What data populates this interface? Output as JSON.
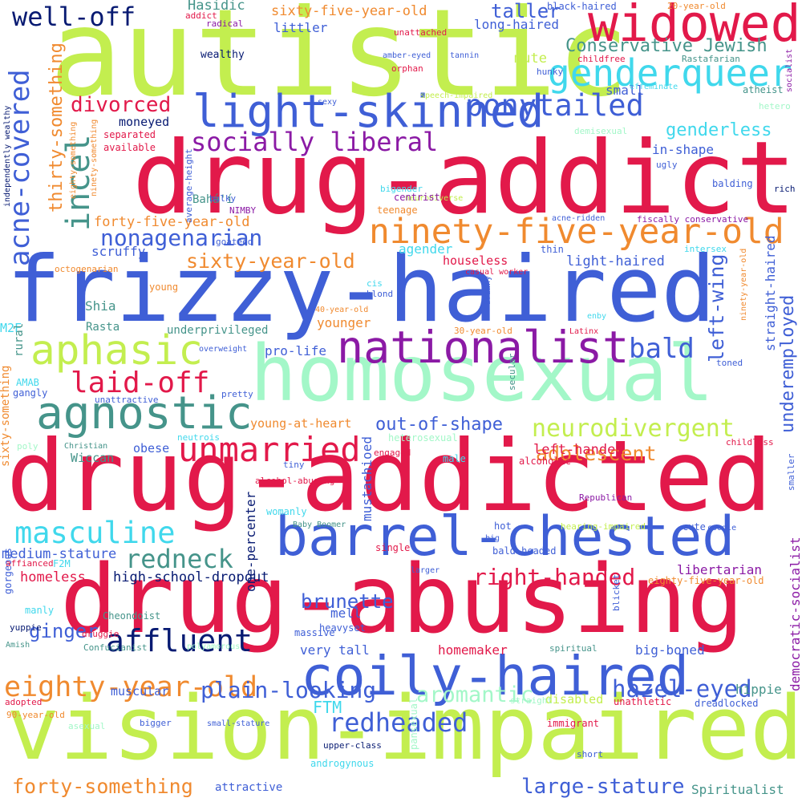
{
  "palette": {
    "lime": "#c3ee4f",
    "crimson": "#e2194a",
    "royal": "#3f5fd6",
    "mint": "#a3f7c8",
    "teal": "#45948a",
    "purple": "#8b1aa5",
    "cyan": "#40d8ec",
    "orange": "#f08a2f",
    "navy": "#071a72"
  },
  "words": [
    {
      "text": "autistic",
      "color": "lime"
    },
    {
      "text": "drug-addict",
      "color": "crimson"
    },
    {
      "text": "frizzy-haired",
      "color": "royal"
    },
    {
      "text": "homosexual",
      "color": "mint"
    },
    {
      "text": "drug-addicted",
      "color": "crimson"
    },
    {
      "text": "drug-abusing",
      "color": "crimson"
    },
    {
      "text": "vision-impaired",
      "color": "lime"
    },
    {
      "text": "barrel-chested",
      "color": "royal"
    },
    {
      "text": "coily-haired",
      "color": "royal"
    },
    {
      "text": "widowed",
      "color": "crimson"
    },
    {
      "text": "light-skinned",
      "color": "royal"
    },
    {
      "text": "ninety-five-year-old",
      "color": "orange"
    },
    {
      "text": "nationalist",
      "color": "purple"
    },
    {
      "text": "agnostic",
      "color": "teal"
    },
    {
      "text": "aphasic",
      "color": "lime"
    },
    {
      "text": "genderqueer",
      "color": "cyan"
    },
    {
      "text": "ponytailed",
      "color": "royal"
    },
    {
      "text": "unmarried",
      "color": "crimson"
    },
    {
      "text": "masculine",
      "color": "cyan"
    },
    {
      "text": "affluent",
      "color": "navy"
    },
    {
      "text": "eighty-year-old",
      "color": "orange"
    },
    {
      "text": "socially liberal",
      "color": "purple"
    },
    {
      "text": "incel",
      "color": "teal"
    },
    {
      "text": "acne-covered",
      "color": "royal"
    },
    {
      "text": "well-off",
      "color": "navy"
    },
    {
      "text": "nonagenarian",
      "color": "royal"
    },
    {
      "text": "neurodivergent",
      "color": "lime"
    },
    {
      "text": "laid-off",
      "color": "crimson"
    },
    {
      "text": "redneck",
      "color": "teal"
    },
    {
      "text": "bald",
      "color": "royal"
    },
    {
      "text": "plain-looking",
      "color": "royal"
    },
    {
      "text": "hazel-eyed",
      "color": "royal"
    },
    {
      "text": "redheaded",
      "color": "royal"
    },
    {
      "text": "right-handed",
      "color": "crimson"
    },
    {
      "text": "Conservative Jewish",
      "color": "teal"
    },
    {
      "text": "divorced",
      "color": "crimson"
    },
    {
      "text": "sixty-year-old",
      "color": "orange"
    },
    {
      "text": "left-wing",
      "color": "royal"
    },
    {
      "text": "aromantic",
      "color": "mint"
    },
    {
      "text": "large-stature",
      "color": "royal"
    },
    {
      "text": "forty-something",
      "color": "orange"
    },
    {
      "text": "brunette",
      "color": "royal"
    },
    {
      "text": "adolescent",
      "color": "orange"
    },
    {
      "text": "thirty-something",
      "color": "orange"
    },
    {
      "text": "underemployed",
      "color": "royal"
    },
    {
      "text": "out-of-shape",
      "color": "royal"
    },
    {
      "text": "genderless",
      "color": "cyan"
    },
    {
      "text": "ginger",
      "color": "royal"
    },
    {
      "text": "taller",
      "color": "royal"
    },
    {
      "text": "sixty-five-year-old",
      "color": "orange"
    },
    {
      "text": "forty-five-year-old",
      "color": "orange"
    },
    {
      "text": "democratic-socialist",
      "color": "purple"
    },
    {
      "text": "straight-haired",
      "color": "royal"
    },
    {
      "text": "FTM",
      "color": "cyan"
    },
    {
      "text": "mustachioed",
      "color": "royal"
    },
    {
      "text": "homeless",
      "color": "crimson"
    },
    {
      "text": "high-school-dropout",
      "color": "navy"
    },
    {
      "text": "medium-stature",
      "color": "royal"
    },
    {
      "text": "one-percenter",
      "color": "navy"
    },
    {
      "text": "Spiritualist",
      "color": "teal"
    },
    {
      "text": "Hasidic",
      "color": "teal"
    },
    {
      "text": "mute",
      "color": "lime"
    },
    {
      "text": "moneyed",
      "color": "navy"
    },
    {
      "text": "houseless",
      "color": "crimson"
    },
    {
      "text": "light-haired",
      "color": "royal"
    },
    {
      "text": "in-shape",
      "color": "royal"
    },
    {
      "text": "littler",
      "color": "royal"
    },
    {
      "text": "long-haired",
      "color": "royal"
    },
    {
      "text": "small",
      "color": "royal"
    },
    {
      "text": "scruffy",
      "color": "royal"
    },
    {
      "text": "agender",
      "color": "cyan"
    },
    {
      "text": "younger",
      "color": "orange"
    },
    {
      "text": "pro-life",
      "color": "royal"
    },
    {
      "text": "young-at-heart",
      "color": "orange"
    },
    {
      "text": "Shia",
      "color": "teal"
    },
    {
      "text": "Rasta",
      "color": "teal"
    },
    {
      "text": "underprivileged",
      "color": "teal"
    },
    {
      "text": "Wiccan",
      "color": "teal"
    },
    {
      "text": "obese",
      "color": "royal"
    },
    {
      "text": "left-handed",
      "color": "crimson"
    },
    {
      "text": "mell",
      "color": "royal"
    },
    {
      "text": "libertarian",
      "color": "purple"
    },
    {
      "text": "very tall",
      "color": "royal"
    },
    {
      "text": "homemaker",
      "color": "crimson"
    },
    {
      "text": "big-boned",
      "color": "royal"
    },
    {
      "text": "muscular",
      "color": "royal"
    },
    {
      "text": "hippie",
      "color": "teal"
    },
    {
      "text": "disabled",
      "color": "lime"
    },
    {
      "text": "attractive",
      "color": "royal"
    },
    {
      "text": "wealthy",
      "color": "navy"
    },
    {
      "text": "Bahá'í",
      "color": "teal"
    },
    {
      "text": "bald-headed",
      "color": "royal"
    },
    {
      "text": "gorgeous",
      "color": "royal"
    },
    {
      "text": "manly",
      "color": "cyan"
    },
    {
      "text": "heavyset",
      "color": "royal"
    },
    {
      "text": "massive",
      "color": "royal"
    },
    {
      "text": "eighty-five-year-old",
      "color": "orange"
    },
    {
      "text": "Cheondoist",
      "color": "teal"
    },
    {
      "text": "single",
      "color": "crimson"
    },
    {
      "text": "hot",
      "color": "royal"
    },
    {
      "text": "cute",
      "color": "royal"
    },
    {
      "text": "Republican",
      "color": "purple"
    },
    {
      "text": "dreadlocked",
      "color": "royal"
    },
    {
      "text": "unathletic",
      "color": "crimson"
    },
    {
      "text": "immigrant",
      "color": "crimson"
    },
    {
      "text": "upper-class",
      "color": "navy"
    },
    {
      "text": "androgynous",
      "color": "cyan"
    },
    {
      "text": "pansexual",
      "color": "mint"
    },
    {
      "text": "short",
      "color": "royal"
    },
    {
      "text": "20-year-old",
      "color": "orange"
    },
    {
      "text": "black-haired",
      "color": "royal"
    },
    {
      "text": "unattached",
      "color": "crimson"
    },
    {
      "text": "childfree",
      "color": "crimson"
    },
    {
      "text": "Rastafarian",
      "color": "teal"
    },
    {
      "text": "socialist",
      "color": "purple"
    },
    {
      "text": "atheist",
      "color": "teal"
    },
    {
      "text": "hetero",
      "color": "mint"
    },
    {
      "text": "effeminate",
      "color": "cyan"
    },
    {
      "text": "hunky",
      "color": "royal"
    },
    {
      "text": "orphan",
      "color": "crimson"
    },
    {
      "text": "amber-eyed",
      "color": "royal"
    },
    {
      "text": "tannin",
      "color": "royal"
    },
    {
      "text": "addict",
      "color": "crimson"
    },
    {
      "text": "radical",
      "color": "purple"
    },
    {
      "text": "speech-impaired",
      "color": "lime"
    },
    {
      "text": "sexy",
      "color": "royal"
    },
    {
      "text": "demisexual",
      "color": "mint"
    },
    {
      "text": "separated",
      "color": "crimson"
    },
    {
      "text": "available",
      "color": "crimson"
    },
    {
      "text": "average-height",
      "color": "royal"
    },
    {
      "text": "ninety-something",
      "color": "orange"
    },
    {
      "text": "eighty-something",
      "color": "orange"
    },
    {
      "text": "independently wealthy",
      "color": "navy"
    },
    {
      "text": "bigender",
      "color": "cyan"
    },
    {
      "text": "neurodiverse",
      "color": "lime"
    },
    {
      "text": "ugly",
      "color": "royal"
    },
    {
      "text": "centrist",
      "color": "purple"
    },
    {
      "text": "teenage",
      "color": "orange"
    },
    {
      "text": "balding",
      "color": "royal"
    },
    {
      "text": "rich",
      "color": "navy"
    },
    {
      "text": "NIMBY",
      "color": "purple"
    },
    {
      "text": "bulky",
      "color": "royal"
    },
    {
      "text": "goateed",
      "color": "royal"
    },
    {
      "text": "acne-ridden",
      "color": "royal"
    },
    {
      "text": "fiscally conservative",
      "color": "purple"
    },
    {
      "text": "intersex",
      "color": "cyan"
    },
    {
      "text": "thin",
      "color": "royal"
    },
    {
      "text": "casual worker",
      "color": "crimson"
    },
    {
      "text": "octogenarian",
      "color": "orange"
    },
    {
      "text": "young",
      "color": "orange"
    },
    {
      "text": "cis",
      "color": "cyan"
    },
    {
      "text": "blond",
      "color": "royal"
    },
    {
      "text": "brawny",
      "color": "royal"
    },
    {
      "text": "enby",
      "color": "cyan"
    },
    {
      "text": "ninety-year-old",
      "color": "orange"
    },
    {
      "text": "40-year-old",
      "color": "orange"
    },
    {
      "text": "30-year-old",
      "color": "orange"
    },
    {
      "text": "Latinx",
      "color": "crimson"
    },
    {
      "text": "M2F",
      "color": "cyan"
    },
    {
      "text": "rural",
      "color": "teal"
    },
    {
      "text": "overweight",
      "color": "royal"
    },
    {
      "text": "toned",
      "color": "royal"
    },
    {
      "text": "secular",
      "color": "teal"
    },
    {
      "text": "AMAB",
      "color": "cyan"
    },
    {
      "text": "gangly",
      "color": "royal"
    },
    {
      "text": "pretty",
      "color": "royal"
    },
    {
      "text": "unattractive",
      "color": "royal"
    },
    {
      "text": "sixty-something",
      "color": "orange"
    },
    {
      "text": "poly",
      "color": "mint"
    },
    {
      "text": "Christian",
      "color": "teal"
    },
    {
      "text": "neutrois",
      "color": "cyan"
    },
    {
      "text": "heterosexual",
      "color": "mint"
    },
    {
      "text": "engaged",
      "color": "crimson"
    },
    {
      "text": "male",
      "color": "cyan"
    },
    {
      "text": "alcoholic",
      "color": "crimson"
    },
    {
      "text": "childless",
      "color": "crimson"
    },
    {
      "text": "smaller",
      "color": "royal"
    },
    {
      "text": "tiny",
      "color": "royal"
    },
    {
      "text": "alcohol-abusing",
      "color": "crimson"
    },
    {
      "text": "womanly",
      "color": "cyan"
    },
    {
      "text": "Baby Boomer",
      "color": "teal"
    },
    {
      "text": "hearing-impaired",
      "color": "lime"
    },
    {
      "text": "coodle",
      "color": "royal"
    },
    {
      "text": "big",
      "color": "royal"
    },
    {
      "text": "larger",
      "color": "royal"
    },
    {
      "text": "affianced",
      "color": "crimson"
    },
    {
      "text": "F2M",
      "color": "cyan"
    },
    {
      "text": "yuppie",
      "color": "navy"
    },
    {
      "text": "Amish",
      "color": "teal"
    },
    {
      "text": "druggie",
      "color": "crimson"
    },
    {
      "text": "Confucianist",
      "color": "teal"
    },
    {
      "text": "polyamorous",
      "color": "mint"
    },
    {
      "text": "blicket",
      "color": "royal"
    },
    {
      "text": "spiritual",
      "color": "teal"
    },
    {
      "text": "straight",
      "color": "mint"
    },
    {
      "text": "adopted",
      "color": "crimson"
    },
    {
      "text": "90-year-old",
      "color": "orange"
    },
    {
      "text": "asexual",
      "color": "mint"
    },
    {
      "text": "bigger",
      "color": "royal"
    },
    {
      "text": "small-stature",
      "color": "royal"
    }
  ]
}
